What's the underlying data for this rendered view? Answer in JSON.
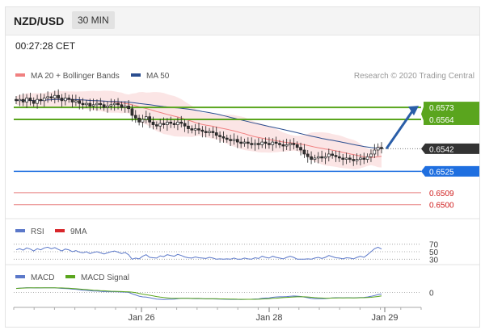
{
  "header": {
    "symbol": "NZD/USD",
    "interval": "30 MIN"
  },
  "timestamp": "00:27:28 CET",
  "legend": {
    "ma20": "MA 20 + Bollinger Bands",
    "ma50": "MA 50",
    "rsi": "RSI",
    "rsi_ma": "9MA",
    "macd": "MACD",
    "macd_signal": "MACD Signal"
  },
  "credit": "Research © 2020 Trading Central",
  "colors": {
    "ma20": "#f08080",
    "ma50": "#2a4d8f",
    "band": "#fadcdc",
    "resistance": "#5aa51e",
    "pivot": "#1f6fe0",
    "support": "#e05555",
    "last": "#333333",
    "rsi": "#5b78c9",
    "rsi_ma": "#d8262b",
    "macd": "#5b78c9",
    "macd_signal": "#5aa51e",
    "arrow": "#2a5ea8"
  },
  "chart_data": [
    {
      "type": "line",
      "name": "price",
      "x_ticks": [
        "Jan 26",
        "Jan 28",
        "Jan 29"
      ],
      "ylim": [
        0.6495,
        0.659
      ],
      "close": [
        0.6578,
        0.6579,
        0.6577,
        0.658,
        0.6578,
        0.6576,
        0.6579,
        0.6578,
        0.658,
        0.6581,
        0.658,
        0.6582,
        0.658,
        0.6578,
        0.658,
        0.6579,
        0.6577,
        0.6578,
        0.6576,
        0.6575,
        0.6576,
        0.6574,
        0.6575,
        0.6576,
        0.6575,
        0.6573,
        0.6574,
        0.6575,
        0.6576,
        0.6575,
        0.6573,
        0.6574,
        0.6572,
        0.6567,
        0.6565,
        0.6562,
        0.6564,
        0.6566,
        0.6562,
        0.656,
        0.6559,
        0.6561,
        0.656,
        0.6562,
        0.6561,
        0.656,
        0.6562,
        0.6561,
        0.6559,
        0.6557,
        0.6556,
        0.6557,
        0.6556,
        0.6555,
        0.6554,
        0.6555,
        0.6554,
        0.6552,
        0.6551,
        0.655,
        0.6549,
        0.6548,
        0.6549,
        0.6547,
        0.6546,
        0.6547,
        0.6546,
        0.6545,
        0.6546,
        0.6545,
        0.6547,
        0.6546,
        0.6545,
        0.6547,
        0.6546,
        0.6545,
        0.6544,
        0.6545,
        0.6546,
        0.6545,
        0.6543,
        0.6541,
        0.6538,
        0.6536,
        0.6534,
        0.6535,
        0.6536,
        0.6535,
        0.6536,
        0.6538,
        0.6537,
        0.6536,
        0.6535,
        0.6534,
        0.6535,
        0.6534,
        0.6533,
        0.6534,
        0.6535,
        0.6534,
        0.6536,
        0.6538,
        0.6541,
        0.6543,
        0.6542
      ],
      "ma20_last": 0.6535,
      "ma50_last": 0.6535,
      "levels": [
        {
          "label": "0.6573",
          "value": 0.6573,
          "role": "resistance"
        },
        {
          "label": "0.6564",
          "value": 0.6564,
          "role": "resistance"
        },
        {
          "label": "0.6542",
          "value": 0.6542,
          "role": "last"
        },
        {
          "label": "0.6525",
          "value": 0.6525,
          "role": "pivot"
        },
        {
          "label": "0.6509",
          "value": 0.6509,
          "role": "support"
        },
        {
          "label": "0.6500",
          "value": 0.65,
          "role": "support"
        }
      ],
      "projection": {
        "from": 0.6542,
        "to": 0.6573
      }
    },
    {
      "type": "line",
      "name": "RSI",
      "ticks": [
        "70",
        "50",
        "30"
      ],
      "ylim": [
        20,
        80
      ],
      "rsi": [
        55,
        58,
        54,
        60,
        57,
        52,
        58,
        55,
        60,
        62,
        58,
        61,
        56,
        52,
        57,
        55,
        50,
        53,
        49,
        47,
        50,
        45,
        48,
        50,
        47,
        44,
        47,
        50,
        52,
        49,
        45,
        48,
        42,
        30,
        33,
        31,
        38,
        42,
        35,
        34,
        33,
        39,
        37,
        42,
        40,
        38,
        43,
        40,
        36,
        34,
        33,
        36,
        34,
        33,
        32,
        35,
        33,
        30,
        31,
        30,
        31,
        30,
        33,
        30,
        30,
        33,
        31,
        30,
        34,
        32,
        38,
        35,
        33,
        38,
        35,
        33,
        31,
        35,
        38,
        35,
        30,
        30,
        30,
        31,
        30,
        33,
        35,
        32,
        35,
        40,
        37,
        34,
        33,
        31,
        34,
        33,
        31,
        35,
        38,
        35,
        42,
        50,
        58,
        62,
        57
      ]
    },
    {
      "type": "line",
      "name": "MACD",
      "ticks": [
        "0"
      ],
      "ylim": [
        -0.0012,
        0.0008
      ],
      "macd": [
        0.00038,
        0.0004,
        0.00042,
        0.00045,
        0.00044,
        0.00042,
        0.00043,
        0.00042,
        0.00043,
        0.00044,
        0.00043,
        0.00043,
        0.00041,
        0.00038,
        0.00037,
        0.00035,
        0.00031,
        0.00029,
        0.00025,
        0.00021,
        0.00019,
        0.00015,
        0.00013,
        0.00012,
        0.0001,
        7e-05,
        6e-05,
        6e-05,
        6e-05,
        5e-05,
        3e-05,
        2e-05,
        -0.0,
        -0.00013,
        -0.00025,
        -0.00036,
        -0.00043,
        -0.00045,
        -0.00051,
        -0.00058,
        -0.00064,
        -0.00066,
        -0.00068,
        -0.00066,
        -0.00065,
        -0.00064,
        -0.0006,
        -0.00057,
        -0.00056,
        -0.00057,
        -0.00059,
        -0.0006,
        -0.0006,
        -0.00061,
        -0.00062,
        -0.00062,
        -0.00062,
        -0.00063,
        -0.00064,
        -0.00065,
        -0.00066,
        -0.00067,
        -0.00066,
        -0.00067,
        -0.00068,
        -0.00067,
        -0.00066,
        -0.00065,
        -0.00063,
        -0.00062,
        -0.00057,
        -0.00054,
        -0.00052,
        -0.00047,
        -0.00044,
        -0.00042,
        -0.00042,
        -0.0004,
        -0.00037,
        -0.00035,
        -0.00036,
        -0.00039,
        -0.00045,
        -0.00051,
        -0.00058,
        -0.0006,
        -0.00061,
        -0.00061,
        -0.00059,
        -0.00055,
        -0.00052,
        -0.00051,
        -0.00051,
        -0.00052,
        -0.00051,
        -0.00051,
        -0.00052,
        -0.00051,
        -0.00049,
        -0.00048,
        -0.00044,
        -0.00038,
        -0.0003,
        -0.00021,
        -0.00015
      ],
      "signal": [
        0.00037,
        0.00039,
        0.00041,
        0.00042,
        0.00043,
        0.00043,
        0.00043,
        0.00043,
        0.00043,
        0.00043,
        0.00043,
        0.00043,
        0.00042,
        0.00042,
        0.00041,
        0.00039,
        0.00037,
        0.00035,
        0.00032,
        0.00029,
        0.00027,
        0.00024,
        0.00021,
        0.00019,
        0.00017,
        0.00015,
        0.00013,
        0.00011,
        0.0001,
        9e-05,
        8e-05,
        6e-05,
        5e-05,
        2e-05,
        -3e-05,
        -0.0001,
        -0.00017,
        -0.00022,
        -0.00028,
        -0.00034,
        -0.0004,
        -0.00045,
        -0.00049,
        -0.00052,
        -0.00055,
        -0.00057,
        -0.00057,
        -0.00057,
        -0.00057,
        -0.00057,
        -0.00058,
        -0.00058,
        -0.00058,
        -0.00059,
        -0.0006,
        -0.0006,
        -0.00061,
        -0.00061,
        -0.00062,
        -0.00062,
        -0.00063,
        -0.00064,
        -0.00064,
        -0.00065,
        -0.00066,
        -0.00066,
        -0.00066,
        -0.00066,
        -0.00066,
        -0.00065,
        -0.00063,
        -0.00062,
        -0.0006,
        -0.00057,
        -0.00055,
        -0.00052,
        -0.0005,
        -0.00048,
        -0.00046,
        -0.00044,
        -0.00042,
        -0.00042,
        -0.00042,
        -0.00044,
        -0.00047,
        -0.0005,
        -0.00052,
        -0.00054,
        -0.00055,
        -0.00055,
        -0.00054,
        -0.00054,
        -0.00053,
        -0.00053,
        -0.00053,
        -0.00052,
        -0.00052,
        -0.00052,
        -0.00051,
        -0.00051,
        -0.00049,
        -0.00047,
        -0.00043,
        -0.00039,
        -0.00034
      ]
    }
  ]
}
